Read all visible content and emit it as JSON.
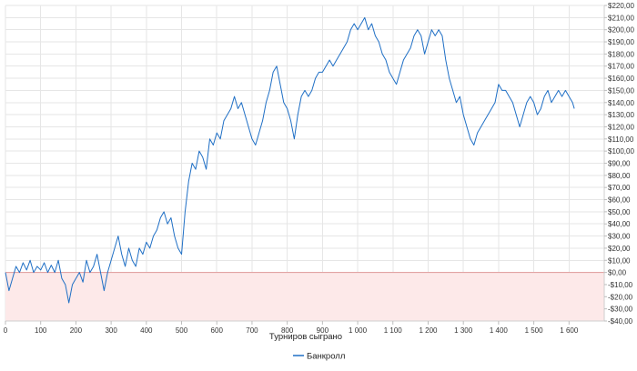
{
  "chart_data": {
    "type": "line",
    "title": "",
    "xlabel": "Турниров сыграно",
    "ylabel": "",
    "xlim": [
      0,
      1700
    ],
    "ylim": [
      -40,
      220
    ],
    "x_ticks": [
      0,
      100,
      200,
      300,
      400,
      500,
      600,
      700,
      800,
      900,
      1000,
      1100,
      1200,
      1300,
      1400,
      1500,
      1600
    ],
    "x_tick_labels": [
      "0",
      "100",
      "200",
      "300",
      "400",
      "500",
      "600",
      "700",
      "800",
      "900",
      "1 000",
      "1 100",
      "1 200",
      "1 300",
      "1 400",
      "1 500",
      "1 600"
    ],
    "y_ticks": [
      -40,
      -30,
      -20,
      -10,
      0,
      10,
      20,
      30,
      40,
      50,
      60,
      70,
      80,
      90,
      100,
      110,
      120,
      130,
      140,
      150,
      160,
      170,
      180,
      190,
      200,
      210,
      220
    ],
    "y_tick_labels": [
      "-$40,00",
      "-$30,00",
      "-$20,00",
      "-$10,00",
      "$0,00",
      "$10,00",
      "$20,00",
      "$30,00",
      "$40,00",
      "$50,00",
      "$60,00",
      "$70,00",
      "$80,00",
      "$90,00",
      "$100,00",
      "$110,00",
      "$120,00",
      "$130,00",
      "$140,00",
      "$150,00",
      "$160,00",
      "$170,00",
      "$180,00",
      "$190,00",
      "$200,00",
      "$210,00",
      "$220,00"
    ],
    "negative_region_color": "#fde9e9",
    "zero_line_color": "#e29a9a",
    "grid": true,
    "grid_color": "#e6e6e6",
    "legend_position": "bottom-center",
    "series": [
      {
        "name": "Банкролл",
        "color": "#1f6fc5",
        "points": [
          [
            0,
            0
          ],
          [
            10,
            -15
          ],
          [
            20,
            -5
          ],
          [
            30,
            5
          ],
          [
            40,
            0
          ],
          [
            50,
            8
          ],
          [
            60,
            2
          ],
          [
            70,
            10
          ],
          [
            80,
            0
          ],
          [
            90,
            5
          ],
          [
            100,
            2
          ],
          [
            110,
            8
          ],
          [
            120,
            0
          ],
          [
            130,
            6
          ],
          [
            140,
            0
          ],
          [
            150,
            10
          ],
          [
            160,
            -5
          ],
          [
            170,
            -10
          ],
          [
            180,
            -25
          ],
          [
            190,
            -10
          ],
          [
            200,
            -5
          ],
          [
            210,
            0
          ],
          [
            220,
            -8
          ],
          [
            230,
            10
          ],
          [
            240,
            0
          ],
          [
            250,
            5
          ],
          [
            260,
            15
          ],
          [
            270,
            0
          ],
          [
            280,
            -15
          ],
          [
            290,
            0
          ],
          [
            300,
            10
          ],
          [
            310,
            20
          ],
          [
            320,
            30
          ],
          [
            330,
            15
          ],
          [
            340,
            5
          ],
          [
            350,
            20
          ],
          [
            360,
            10
          ],
          [
            370,
            5
          ],
          [
            380,
            20
          ],
          [
            390,
            15
          ],
          [
            400,
            25
          ],
          [
            410,
            20
          ],
          [
            420,
            30
          ],
          [
            430,
            35
          ],
          [
            440,
            45
          ],
          [
            450,
            50
          ],
          [
            460,
            40
          ],
          [
            470,
            45
          ],
          [
            480,
            30
          ],
          [
            490,
            20
          ],
          [
            500,
            15
          ],
          [
            510,
            50
          ],
          [
            520,
            75
          ],
          [
            530,
            90
          ],
          [
            540,
            85
          ],
          [
            550,
            100
          ],
          [
            560,
            95
          ],
          [
            570,
            85
          ],
          [
            580,
            110
          ],
          [
            590,
            105
          ],
          [
            600,
            115
          ],
          [
            610,
            110
          ],
          [
            620,
            125
          ],
          [
            630,
            130
          ],
          [
            640,
            135
          ],
          [
            650,
            145
          ],
          [
            660,
            135
          ],
          [
            670,
            140
          ],
          [
            680,
            130
          ],
          [
            690,
            120
          ],
          [
            700,
            110
          ],
          [
            710,
            105
          ],
          [
            720,
            115
          ],
          [
            730,
            125
          ],
          [
            740,
            140
          ],
          [
            750,
            150
          ],
          [
            760,
            165
          ],
          [
            770,
            170
          ],
          [
            780,
            155
          ],
          [
            790,
            140
          ],
          [
            800,
            135
          ],
          [
            810,
            125
          ],
          [
            820,
            110
          ],
          [
            830,
            130
          ],
          [
            840,
            145
          ],
          [
            850,
            150
          ],
          [
            860,
            145
          ],
          [
            870,
            150
          ],
          [
            880,
            160
          ],
          [
            890,
            165
          ],
          [
            900,
            165
          ],
          [
            910,
            170
          ],
          [
            920,
            175
          ],
          [
            930,
            170
          ],
          [
            940,
            175
          ],
          [
            950,
            180
          ],
          [
            960,
            185
          ],
          [
            970,
            190
          ],
          [
            980,
            200
          ],
          [
            990,
            205
          ],
          [
            1000,
            200
          ],
          [
            1010,
            205
          ],
          [
            1020,
            210
          ],
          [
            1030,
            200
          ],
          [
            1040,
            205
          ],
          [
            1050,
            195
          ],
          [
            1060,
            190
          ],
          [
            1070,
            180
          ],
          [
            1080,
            175
          ],
          [
            1090,
            165
          ],
          [
            1100,
            160
          ],
          [
            1110,
            155
          ],
          [
            1120,
            165
          ],
          [
            1130,
            175
          ],
          [
            1140,
            180
          ],
          [
            1150,
            185
          ],
          [
            1160,
            195
          ],
          [
            1170,
            200
          ],
          [
            1180,
            195
          ],
          [
            1190,
            180
          ],
          [
            1200,
            190
          ],
          [
            1210,
            200
          ],
          [
            1220,
            195
          ],
          [
            1230,
            200
          ],
          [
            1240,
            195
          ],
          [
            1250,
            175
          ],
          [
            1260,
            160
          ],
          [
            1270,
            150
          ],
          [
            1280,
            140
          ],
          [
            1290,
            145
          ],
          [
            1300,
            130
          ],
          [
            1310,
            120
          ],
          [
            1320,
            110
          ],
          [
            1330,
            105
          ],
          [
            1340,
            115
          ],
          [
            1350,
            120
          ],
          [
            1360,
            125
          ],
          [
            1370,
            130
          ],
          [
            1380,
            135
          ],
          [
            1390,
            140
          ],
          [
            1400,
            155
          ],
          [
            1410,
            150
          ],
          [
            1420,
            150
          ],
          [
            1430,
            145
          ],
          [
            1440,
            140
          ],
          [
            1450,
            130
          ],
          [
            1460,
            120
          ],
          [
            1470,
            130
          ],
          [
            1480,
            140
          ],
          [
            1490,
            145
          ],
          [
            1500,
            140
          ],
          [
            1510,
            130
          ],
          [
            1520,
            135
          ],
          [
            1530,
            145
          ],
          [
            1540,
            150
          ],
          [
            1550,
            140
          ],
          [
            1560,
            145
          ],
          [
            1570,
            150
          ],
          [
            1580,
            145
          ],
          [
            1590,
            150
          ],
          [
            1600,
            145
          ],
          [
            1610,
            140
          ],
          [
            1615,
            135
          ]
        ]
      }
    ]
  }
}
